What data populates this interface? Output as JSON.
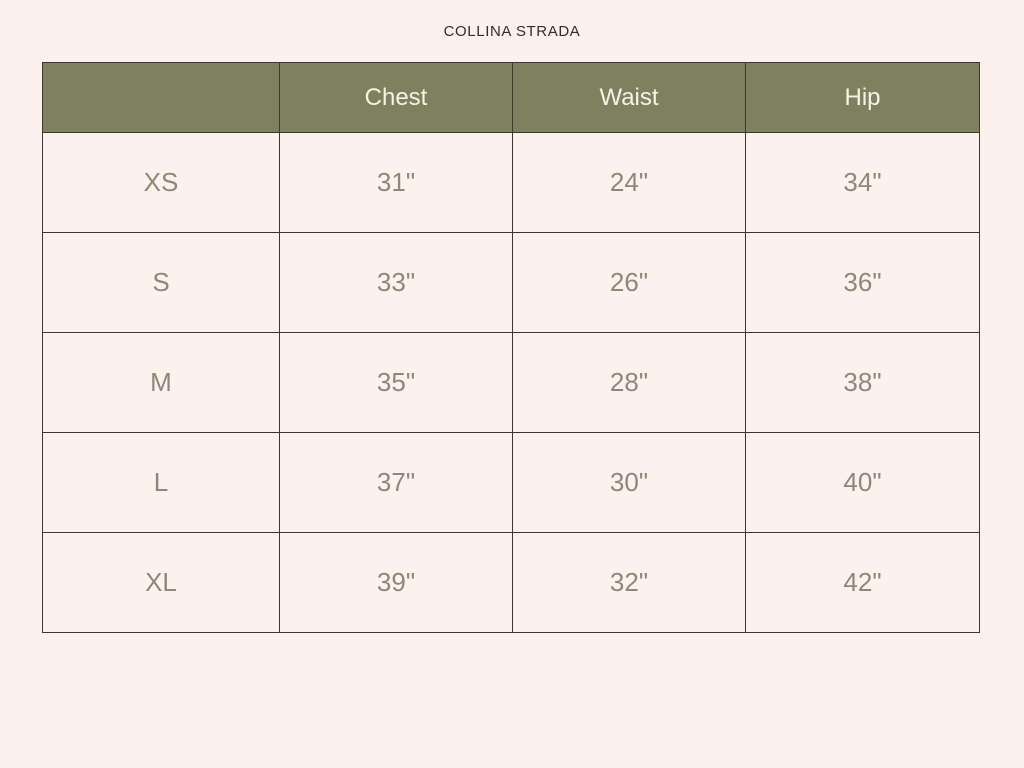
{
  "page": {
    "title": "COLLINA STRADA"
  },
  "colors": {
    "background": "#fdf1ed",
    "header_background": "#7e8060",
    "header_text": "#f7f2e6",
    "cell_text": "#8b8977",
    "grid_border": "#3b3833",
    "title_text": "#322d29"
  },
  "chart_data": {
    "type": "table",
    "title": "COLLINA STRADA",
    "headers": [
      "",
      "Chest",
      "Waist",
      "Hip"
    ],
    "rows": [
      {
        "size": "XS",
        "chest": "31\"",
        "waist": "24\"",
        "hip": "34\""
      },
      {
        "size": "S",
        "chest": "33\"",
        "waist": "26\"",
        "hip": "36\""
      },
      {
        "size": "M",
        "chest": "35\"",
        "waist": "28\"",
        "hip": "38\""
      },
      {
        "size": "L",
        "chest": "37\"",
        "waist": "30\"",
        "hip": "40\""
      },
      {
        "size": "XL",
        "chest": "39\"",
        "waist": "32\"",
        "hip": "42\""
      }
    ]
  }
}
